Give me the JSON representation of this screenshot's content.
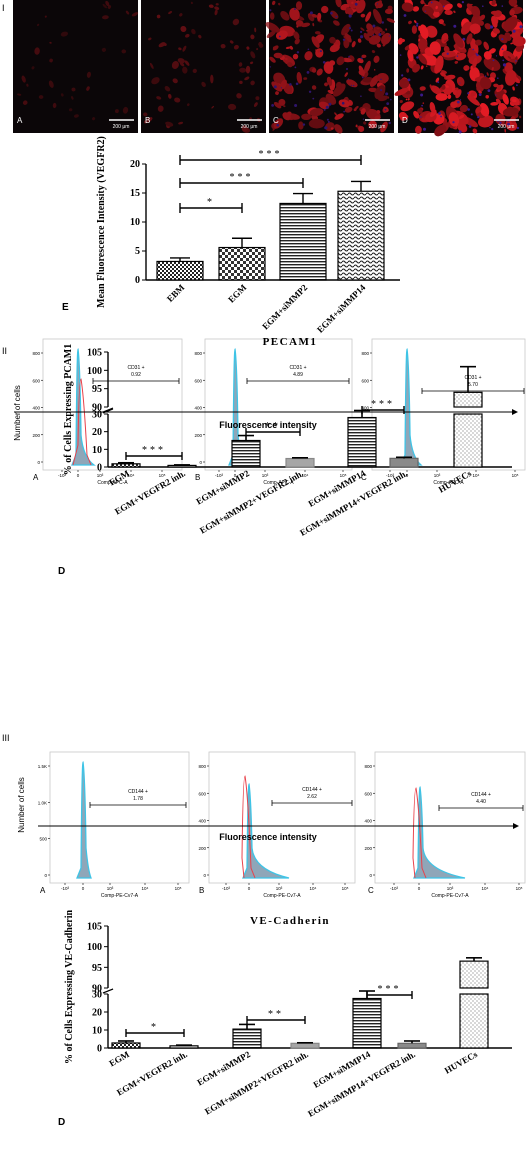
{
  "section_labels": [
    "I",
    "II",
    "III"
  ],
  "micrographs": {
    "panels": [
      {
        "letter": "A",
        "scale": "200 μm",
        "intensity": 0.05
      },
      {
        "letter": "B",
        "scale": "200 μm",
        "intensity": 0.2
      },
      {
        "letter": "C",
        "scale": "200 μm",
        "intensity": 0.7
      },
      {
        "letter": "D",
        "scale": "200 μm",
        "intensity": 1.0
      }
    ]
  },
  "chart_data": [
    {
      "type": "bar",
      "panel_letter": "E",
      "ylabel": "Mean Fluorescence Intensity (VEGFR2)",
      "categories": [
        "EBM",
        "EGM",
        "EGM+siMMP2",
        "EGM+siMMP14"
      ],
      "values": [
        3.2,
        5.6,
        13.2,
        15.3
      ],
      "errors": [
        0.6,
        1.6,
        1.7,
        1.7
      ],
      "ylim": [
        0,
        20
      ],
      "yticks": [
        "0",
        "5",
        "10",
        "15",
        "20"
      ],
      "significance": [
        {
          "from": 0,
          "to": 1,
          "label": "*"
        },
        {
          "from": 0,
          "to": 2,
          "label": "***"
        },
        {
          "from": 0,
          "to": 3,
          "label": "***"
        }
      ]
    },
    {
      "type": "bar",
      "panel_letter": "D",
      "title": "PECAM1",
      "ylabel": "% of Cells Expressing PCAM1",
      "categories": [
        "EGM",
        "EGM+VEGFR2 inh.",
        "EGM+siMMP2",
        "EGM+siMMP2+VEGFR2 inh.",
        "EGM+siMMP14",
        "EGM+siMMP14+VEGFR2 inh.",
        "HUVECs"
      ],
      "values": [
        1.8,
        0.9,
        15.0,
        4.8,
        28.0,
        4.9,
        94.0
      ],
      "errors": [
        0.6,
        0.3,
        2.8,
        0.4,
        2.2,
        0.6,
        7.0
      ],
      "yticks_lower": [
        "0",
        "10",
        "20",
        "30"
      ],
      "yticks_upper": [
        "90",
        "95",
        "100",
        "105"
      ],
      "axis_break": [
        30,
        90
      ],
      "significance": [
        {
          "from": 0,
          "to": 1,
          "label": "***"
        },
        {
          "from": 2,
          "to": 3,
          "label": "**"
        },
        {
          "from": 4,
          "to": 5,
          "label": "***"
        }
      ]
    },
    {
      "type": "bar",
      "panel_letter": "D",
      "title": "VE-Cadherin",
      "ylabel": "% of Cells Expressing VE-Cadherin",
      "categories": [
        "EGM",
        "EGM+VEGFR2 inh.",
        "EGM+siMMP2",
        "EGM+siMMP2+VEGFR2 inh.",
        "EGM+siMMP14",
        "EGM+siMMP14+VEGFR2 inh.",
        "HUVECs"
      ],
      "values": [
        2.8,
        1.2,
        10.5,
        2.6,
        27.5,
        2.6,
        96.5
      ],
      "errors": [
        1.1,
        0.4,
        2.6,
        0.3,
        2.6,
        1.3,
        0.8
      ],
      "yticks_lower": [
        "0",
        "10",
        "20",
        "30"
      ],
      "yticks_upper": [
        "90",
        "95",
        "100",
        "105"
      ],
      "axis_break": [
        30,
        90
      ],
      "significance": [
        {
          "from": 0,
          "to": 1,
          "label": "*"
        },
        {
          "from": 2,
          "to": 3,
          "label": "**"
        },
        {
          "from": 4,
          "to": 5,
          "label": "***"
        }
      ]
    }
  ],
  "flow": {
    "II": {
      "ylabel": "Number of cells",
      "fluor_label": "Fluorescence intensity",
      "panels": [
        {
          "letter": "A",
          "xlabel": "Comp-APC-A",
          "gate_label": "CD31 +",
          "gate_value": "0.92",
          "yticks": [
            "800",
            "600",
            "400",
            "200",
            "0"
          ],
          "xticks": [
            "-10³",
            "0",
            "10³",
            "10⁴",
            "10⁵"
          ]
        },
        {
          "letter": "B",
          "xlabel": "Comp-APC-A",
          "gate_label": "CD31 +",
          "gate_value": "4.89",
          "yticks": [
            "800",
            "600",
            "400",
            "200",
            "0"
          ],
          "xticks": [
            "-10³",
            "0",
            "10³",
            "10⁴",
            "10⁵"
          ]
        },
        {
          "letter": "C",
          "xlabel": "Comp-APC-A",
          "gate_label": "CD31 +",
          "gate_value": "5.70",
          "yticks": [
            "800",
            "600",
            "400",
            "200",
            "0"
          ],
          "xticks": [
            "-10³",
            "0",
            "10³",
            "10⁴",
            "10⁵"
          ]
        }
      ]
    },
    "III": {
      "ylabel": "Number of cells",
      "fluor_label": "Fluorescence intensity",
      "panels": [
        {
          "letter": "A",
          "xlabel": "Comp-PE-Cv7-A",
          "gate_label": "CD144 +",
          "gate_value": "1.78",
          "yticks": [
            "1.5K",
            "1.0K",
            "500",
            "0"
          ],
          "xticks": [
            "-10³",
            "0",
            "10³",
            "10⁴",
            "10⁵"
          ]
        },
        {
          "letter": "B",
          "xlabel": "Comp-PE-Cv7-A",
          "gate_label": "CD144 +",
          "gate_value": "2.62",
          "yticks": [
            "800",
            "600",
            "400",
            "200",
            "0"
          ],
          "xticks": [
            "-10³",
            "0",
            "10³",
            "10⁴",
            "10⁵"
          ]
        },
        {
          "letter": "C",
          "xlabel": "Comp-PE-Cv7-A",
          "gate_label": "CD144 +",
          "gate_value": "4.40",
          "yticks": [
            "800",
            "600",
            "400",
            "200",
            "0"
          ],
          "xticks": [
            "-10³",
            "0",
            "10³",
            "10⁴",
            "10⁵"
          ]
        }
      ]
    }
  },
  "colors": {
    "red_stain": "#d2191e",
    "histogram_fill": "#8fa6b8",
    "histogram_blue": "#3fc4e6",
    "histogram_red": "#e8414a"
  }
}
